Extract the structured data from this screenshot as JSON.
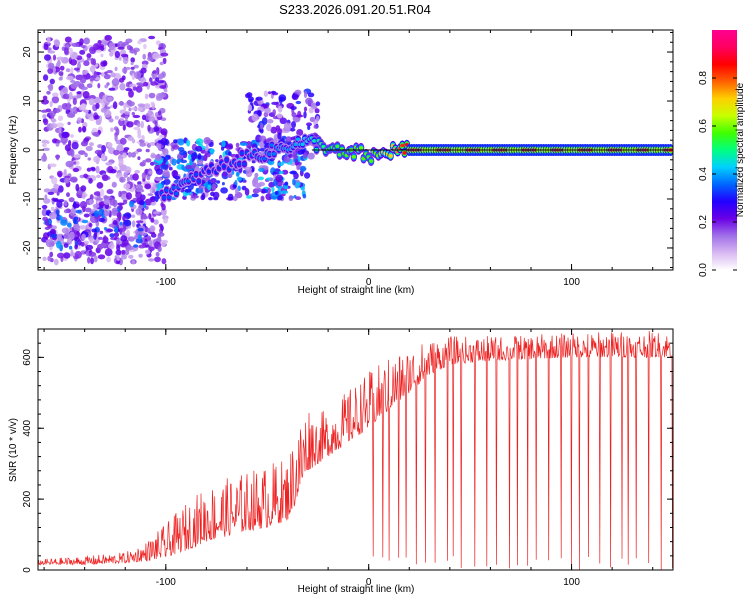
{
  "chart_data": [
    {
      "type": "heatmap",
      "title": "S233.2026.091.20.51.R04",
      "xlabel": "Height of straight line (km)",
      "ylabel": "Frequency (Hz)",
      "xlim": [
        -163,
        150
      ],
      "ylim": [
        -24.5,
        24.5
      ],
      "xticks": [
        -100,
        0,
        100
      ],
      "xtick_labels": [
        "-100",
        "0",
        "100"
      ],
      "yticks": [
        -20,
        -10,
        0,
        10,
        20
      ],
      "ytick_labels": [
        "-20",
        "-10",
        "0",
        "10",
        "20"
      ],
      "colorbar": {
        "label": "Normalized spectral amplitude",
        "range": [
          0.0,
          1.0
        ],
        "ticks": [
          0.0,
          0.2,
          0.4,
          0.6,
          0.8
        ],
        "tick_labels": [
          "0.0",
          "0.2",
          "0.4",
          "0.6",
          "0.8"
        ],
        "colormap": [
          "#ffffff",
          "#d9b8f2",
          "#a070e8",
          "#6a00e6",
          "#2200ff",
          "#0066ff",
          "#00d0ff",
          "#00ff80",
          "#40ff00",
          "#c8ff00",
          "#ffd000",
          "#ff6000",
          "#ff0000",
          "#ff0060",
          "#ff0090"
        ]
      },
      "reference_line": {
        "y": 0,
        "x_from": -28,
        "x_to": 150
      },
      "clusters": [
        {
          "x_from": -160,
          "x_to": -100,
          "y_from": -23,
          "y_to": 23,
          "amplitude": 0.15,
          "density": 0.55
        },
        {
          "x_from": -160,
          "x_to": -110,
          "y_from": -20,
          "y_to": -10,
          "amplitude": 0.25,
          "density": 0.4
        },
        {
          "x_from": -105,
          "x_to": -30,
          "y_from": -10,
          "y_to": 2,
          "amplitude": 0.28,
          "density": 0.75
        },
        {
          "x_from": -60,
          "x_to": -25,
          "y_from": -2,
          "y_to": 12,
          "amplitude": 0.2,
          "density": 0.5
        }
      ],
      "ridge": [
        {
          "x": -102,
          "y": -9.0,
          "amplitude": 0.33
        },
        {
          "x": -90,
          "y": -7.0,
          "amplitude": 0.36
        },
        {
          "x": -80,
          "y": -4.5,
          "amplitude": 0.3
        },
        {
          "x": -70,
          "y": -3.0,
          "amplitude": 0.32
        },
        {
          "x": -60,
          "y": -1.5,
          "amplitude": 0.33
        },
        {
          "x": -50,
          "y": -0.5,
          "amplitude": 0.36
        },
        {
          "x": -42,
          "y": 0.5,
          "amplitude": 0.38
        },
        {
          "x": -36,
          "y": 1.5,
          "amplitude": 0.4
        },
        {
          "x": -28,
          "y": 1.5,
          "amplitude": 0.45
        },
        {
          "x": -20,
          "y": 0.5,
          "amplitude": 0.52
        },
        {
          "x": -12,
          "y": -1.0,
          "amplitude": 0.56
        },
        {
          "x": -5,
          "y": -0.5,
          "amplitude": 0.6
        },
        {
          "x": 0,
          "y": -1.5,
          "amplitude": 0.55
        },
        {
          "x": 6,
          "y": -1.0,
          "amplitude": 0.62
        },
        {
          "x": 12,
          "y": 0.0,
          "amplitude": 0.72
        },
        {
          "x": 20,
          "y": 0.0,
          "amplitude": 0.9
        },
        {
          "x": 150,
          "y": 0.0,
          "amplitude": 0.9
        }
      ]
    },
    {
      "type": "line",
      "xlabel": "Height of straight line (km)",
      "ylabel": "SNR (10 * v/v)",
      "xlim": [
        -163,
        150
      ],
      "ylim": [
        0,
        680
      ],
      "xticks": [
        -100,
        0,
        100
      ],
      "xtick_labels": [
        "-100",
        "0",
        "100"
      ],
      "yticks": [
        0,
        200,
        400,
        600
      ],
      "ytick_labels": [
        "0",
        "200",
        "400",
        "600"
      ],
      "series": [
        {
          "name": "SNR",
          "color": "#ee2222",
          "envelope": {
            "x": [
              -163,
              -140,
              -120,
              -110,
              -100,
              -90,
              -80,
              -70,
              -60,
              -50,
              -40,
              -35,
              -30,
              -25,
              -20,
              -10,
              0,
              10,
              20,
              30,
              40,
              60,
              80,
              100,
              120,
              150
            ],
            "baseline": [
              15,
              15,
              20,
              25,
              35,
              55,
              80,
              95,
              110,
              120,
              140,
              200,
              280,
              300,
              320,
              360,
              400,
              450,
              500,
              550,
              580,
              590,
              595,
              600,
              600,
              600
            ],
            "peak": [
              30,
              40,
              50,
              80,
              130,
              190,
              240,
              260,
              280,
              300,
              320,
              420,
              480,
              440,
              460,
              510,
              560,
              600,
              630,
              650,
              660,
              660,
              665,
              670,
              675,
              675
            ]
          },
          "dropouts_from_x": 0,
          "dropout_spacing": 4.5,
          "dropout_min": 0
        }
      ]
    }
  ]
}
